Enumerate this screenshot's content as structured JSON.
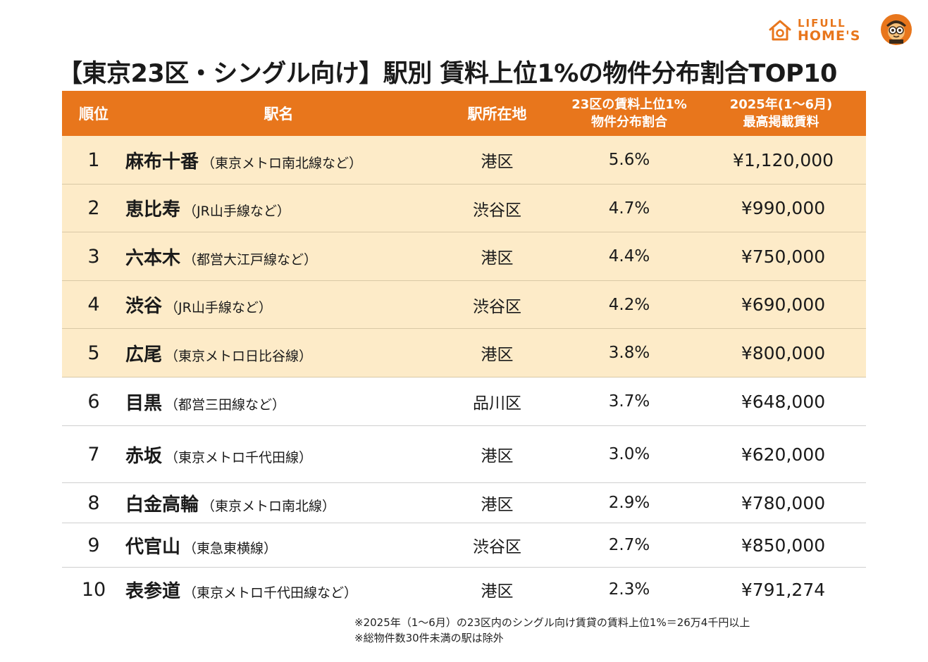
{
  "brand": {
    "small": "LIFULL",
    "big": "HOME'S",
    "accent": "#e8761c"
  },
  "title": "【東京23区・シングル向け】駅別 賃料上位1%の物件分布割合TOP10",
  "table": {
    "headers": {
      "rank": "順位",
      "name": "駅名",
      "ward": "駅所在地",
      "share_l1": "23区の賃料上位1%",
      "share_l2": "物件分布割合",
      "rent_l1": "2025年(1～6月)",
      "rent_l2": "最高掲載賃料"
    },
    "rows": [
      {
        "rank": "1",
        "name": "麻布十番",
        "line": "（東京メトロ南北線など）",
        "ward": "港区",
        "share": "5.6%",
        "rent": "¥1,120,000"
      },
      {
        "rank": "2",
        "name": "恵比寿",
        "line": "（JR山手線など）",
        "ward": "渋谷区",
        "share": "4.7%",
        "rent": "¥990,000"
      },
      {
        "rank": "3",
        "name": "六本木",
        "line": "（都営大江戸線など）",
        "ward": "港区",
        "share": "4.4%",
        "rent": "¥750,000"
      },
      {
        "rank": "4",
        "name": "渋谷",
        "line": "（JR山手線など）",
        "ward": "渋谷区",
        "share": "4.2%",
        "rent": "¥690,000"
      },
      {
        "rank": "5",
        "name": "広尾",
        "line": "（東京メトロ日比谷線）",
        "ward": "港区",
        "share": "3.8%",
        "rent": "¥800,000"
      },
      {
        "rank": "6",
        "name": "目黒",
        "line": "（都営三田線など）",
        "ward": "品川区",
        "share": "3.7%",
        "rent": "¥648,000"
      },
      {
        "rank": "7",
        "name": "赤坂",
        "line": "（東京メトロ千代田線）",
        "ward": "港区",
        "share": "3.0%",
        "rent": "¥620,000"
      },
      {
        "rank": "8",
        "name": "白金高輪",
        "line": "（東京メトロ南北線）",
        "ward": "港区",
        "share": "2.9%",
        "rent": "¥780,000"
      },
      {
        "rank": "9",
        "name": "代官山",
        "line": "（東急東横線）",
        "ward": "渋谷区",
        "share": "2.7%",
        "rent": "¥850,000"
      },
      {
        "rank": "10",
        "name": "表参道",
        "line": "（東京メトロ千代田線など）",
        "ward": "港区",
        "share": "2.3%",
        "rent": "¥791,274"
      }
    ]
  },
  "notes": [
    "※2025年（1～6月）の23区内のシングル向け賃貸の賃料上位1%＝26万4千円以上",
    "※総物件数30件未満の駅は除外"
  ]
}
